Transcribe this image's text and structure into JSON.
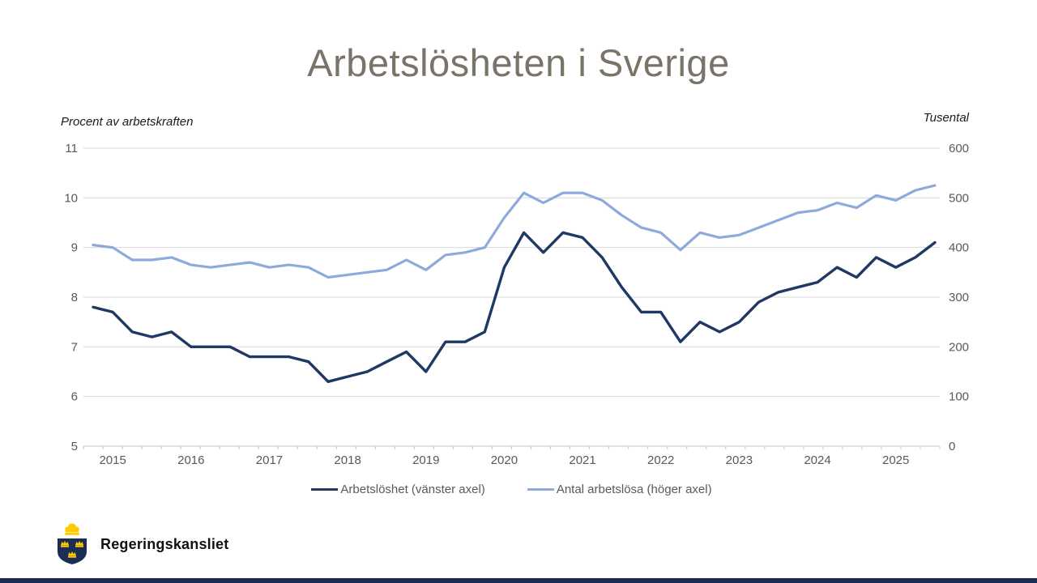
{
  "chart_data": {
    "type": "line",
    "title": "Arbetslösheten i Sverige",
    "ylabel_left": "Procent av arbetskraften",
    "ylabel_right": "Tusental",
    "grid": true,
    "legend_position": "bottom",
    "left_axis": {
      "min": 5,
      "max": 11,
      "ticks": [
        11,
        10,
        9,
        8,
        7,
        6,
        5
      ]
    },
    "right_axis": {
      "min": 0,
      "max": 600,
      "ticks": [
        600,
        500,
        400,
        300,
        200,
        100,
        0
      ]
    },
    "x_tick_labels": [
      "2015",
      "2016",
      "2017",
      "2018",
      "2019",
      "2020",
      "2021",
      "2022",
      "2023",
      "2024",
      "2025"
    ],
    "categories": [
      "2014Q4",
      "2015Q1",
      "2015Q2",
      "2015Q3",
      "2015Q4",
      "2016Q1",
      "2016Q2",
      "2016Q3",
      "2016Q4",
      "2017Q1",
      "2017Q2",
      "2017Q3",
      "2017Q4",
      "2018Q1",
      "2018Q2",
      "2018Q3",
      "2018Q4",
      "2019Q1",
      "2019Q2",
      "2019Q3",
      "2019Q4",
      "2020Q1",
      "2020Q2",
      "2020Q3",
      "2020Q4",
      "2021Q1",
      "2021Q2",
      "2021Q3",
      "2021Q4",
      "2022Q1",
      "2022Q2",
      "2022Q3",
      "2022Q4",
      "2023Q1",
      "2023Q2",
      "2023Q3",
      "2023Q4",
      "2024Q1",
      "2024Q2",
      "2024Q3",
      "2024Q4",
      "2025Q1",
      "2025Q2",
      "2025Q3"
    ],
    "series": [
      {
        "name": "Arbetslöshet (vänster axel)",
        "axis": "left",
        "color": "#1F3864",
        "stroke_width": 3.4,
        "values": [
          7.8,
          7.7,
          7.3,
          7.2,
          7.3,
          7.0,
          7.0,
          7.0,
          6.8,
          6.8,
          6.8,
          6.7,
          6.3,
          6.4,
          6.5,
          6.7,
          6.9,
          6.5,
          7.1,
          7.1,
          7.3,
          8.6,
          9.3,
          8.9,
          9.3,
          9.2,
          8.8,
          8.2,
          7.7,
          7.7,
          7.1,
          7.5,
          7.3,
          7.5,
          7.9,
          8.1,
          8.2,
          8.3,
          8.6,
          8.4,
          8.8,
          8.6,
          8.8,
          9.1
        ]
      },
      {
        "name": "Antal arbetslösa (höger axel)",
        "axis": "right",
        "color": "#8EAADB",
        "stroke_width": 3.2,
        "values": [
          405,
          400,
          375,
          375,
          380,
          365,
          360,
          365,
          370,
          360,
          365,
          360,
          340,
          345,
          350,
          355,
          375,
          355,
          385,
          390,
          400,
          460,
          510,
          490,
          510,
          510,
          495,
          465,
          440,
          430,
          395,
          430,
          420,
          425,
          440,
          455,
          470,
          475,
          490,
          480,
          505,
          495,
          515,
          525
        ]
      }
    ],
    "colors": {
      "gridline": "#D9D9D9",
      "axis_line": "#C6C6C6",
      "tick_text": "#595959",
      "title_text": "#7A7468"
    }
  },
  "footer": {
    "logo_text": "Regeringskansliet"
  }
}
